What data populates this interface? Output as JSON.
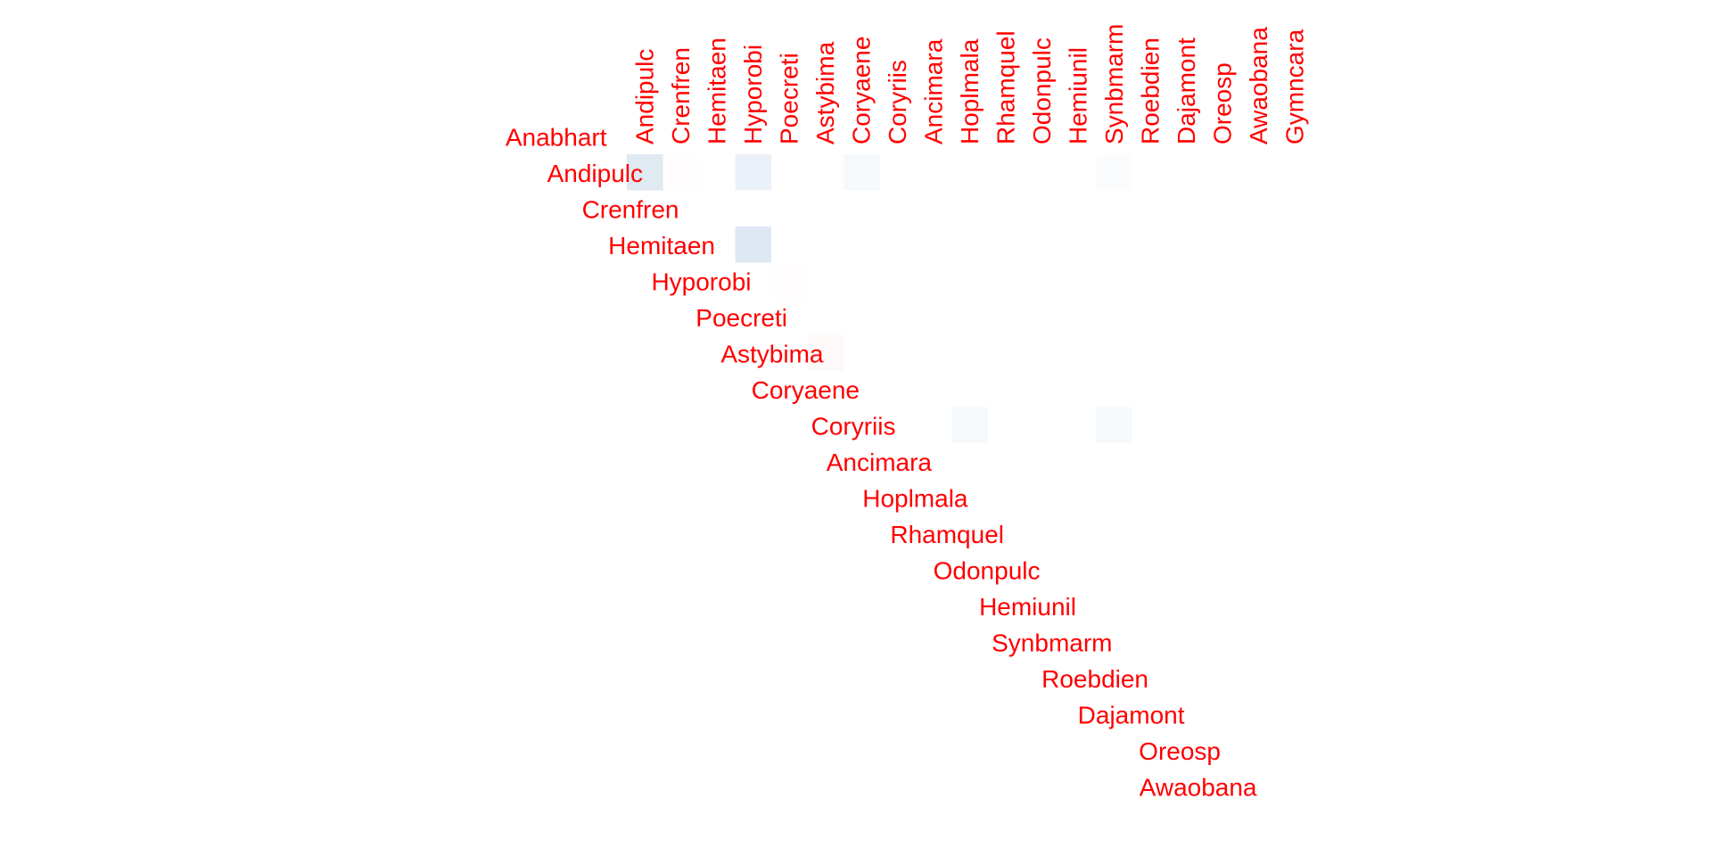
{
  "colors": {
    "label": "#ff0000",
    "positive": "#2166ac",
    "negative": "#d6604d",
    "background": "#ffffff"
  },
  "chart_data": {
    "type": "heatmap",
    "layout": "upper-triangle correlation matrix",
    "title": "",
    "xlabel": "",
    "ylabel": "",
    "legend": "none",
    "grid": false,
    "value_range": [
      -1,
      1
    ],
    "x_labels": [
      "Andipulc",
      "Crenfren",
      "Hemitaen",
      "Hyporobi",
      "Poecreti",
      "Astybima",
      "Coryaene",
      "Coryriis",
      "Ancimara",
      "Hoplmala",
      "Rhamquel",
      "Odonpulc",
      "Hemiunil",
      "Synbmarm",
      "Roebdien",
      "Dajamont",
      "Oreosp",
      "Awaobana",
      "Gymncara"
    ],
    "y_labels": [
      "Anabhart",
      "Andipulc",
      "Crenfren",
      "Hemitaen",
      "Hyporobi",
      "Poecreti",
      "Astybima",
      "Coryaene",
      "Coryriis",
      "Ancimara",
      "Hoplmala",
      "Rhamquel",
      "Odonpulc",
      "Hemiunil",
      "Synbmarm",
      "Roebdien",
      "Dajamont",
      "Oreosp",
      "Awaobana"
    ],
    "values": [
      [
        0,
        0,
        0,
        0,
        0,
        0,
        0,
        0,
        0,
        0,
        0,
        0,
        0,
        0,
        0,
        0,
        0,
        0,
        0
      ],
      [
        0.14,
        -0.01,
        0,
        0.09,
        0,
        0,
        0.04,
        0,
        0,
        0,
        0,
        0,
        0,
        0.02,
        0,
        0,
        0,
        0,
        0
      ],
      [
        0,
        0,
        0,
        0,
        0,
        0,
        0,
        0,
        0,
        0,
        0,
        0,
        0,
        0,
        0,
        0,
        0,
        0,
        0
      ],
      [
        0,
        0,
        0,
        0.15,
        0,
        0,
        0,
        0,
        0,
        0,
        0,
        0,
        0,
        0,
        0,
        0,
        0,
        0,
        0
      ],
      [
        0,
        0,
        0,
        0,
        -0.01,
        0,
        0,
        0,
        0,
        0,
        0,
        0,
        0,
        0,
        0,
        0,
        0,
        0,
        0
      ],
      [
        0,
        0,
        0,
        0,
        0,
        0,
        0,
        0,
        0,
        0,
        0,
        0,
        0,
        0,
        0,
        0,
        0,
        0,
        0
      ],
      [
        0,
        0,
        0,
        0,
        0,
        -0.04,
        0,
        0,
        0,
        0,
        0,
        0,
        0,
        0,
        0,
        0,
        0,
        0,
        0
      ],
      [
        0,
        0,
        0,
        0,
        0,
        0,
        0,
        0,
        0,
        0,
        0,
        0,
        0,
        0,
        0,
        0,
        0,
        0,
        0
      ],
      [
        0,
        0,
        0,
        0,
        0,
        0,
        0,
        0,
        0,
        0.04,
        0,
        0,
        0,
        0.04,
        0,
        0,
        0,
        0,
        0
      ],
      [
        0,
        0,
        0,
        0,
        0,
        0,
        0,
        0,
        0,
        0,
        0,
        0,
        0,
        0,
        0,
        0,
        0,
        0,
        0
      ],
      [
        0,
        0,
        0,
        0,
        0,
        0,
        0,
        0,
        0,
        0,
        0,
        0,
        0,
        0,
        0,
        0,
        0,
        0,
        0
      ],
      [
        0,
        0,
        0,
        0,
        0,
        0,
        0,
        0,
        0,
        0,
        0,
        0,
        0,
        0,
        0,
        0,
        0,
        0,
        0
      ],
      [
        0,
        0,
        0,
        0,
        0,
        0,
        0,
        0,
        0,
        0,
        0,
        0,
        0,
        0,
        0,
        0,
        0,
        0,
        0
      ],
      [
        0,
        0,
        0,
        0,
        0,
        0,
        0,
        0,
        0,
        0,
        0,
        0,
        0,
        0,
        0,
        0,
        0,
        0,
        0
      ],
      [
        0,
        0,
        0,
        0,
        0,
        0,
        0,
        0,
        0,
        0,
        0,
        0,
        0,
        0,
        0,
        0,
        0,
        0,
        0
      ],
      [
        0,
        0,
        0,
        0,
        0,
        0,
        0,
        0,
        0,
        0,
        0,
        0,
        0,
        0,
        0,
        0,
        0,
        0,
        0
      ],
      [
        0,
        0,
        0,
        0,
        0,
        0,
        0,
        0,
        0,
        0,
        0,
        0,
        0,
        0,
        0,
        0,
        0,
        0,
        0
      ],
      [
        0,
        0,
        0,
        0,
        0,
        0,
        0,
        0,
        0,
        0,
        0,
        0,
        0,
        0,
        0,
        0,
        0,
        0,
        0
      ],
      [
        0,
        0,
        0,
        0,
        0,
        0,
        0,
        0,
        0,
        0,
        0,
        0,
        0,
        0,
        0,
        0,
        0,
        0,
        0
      ]
    ]
  }
}
